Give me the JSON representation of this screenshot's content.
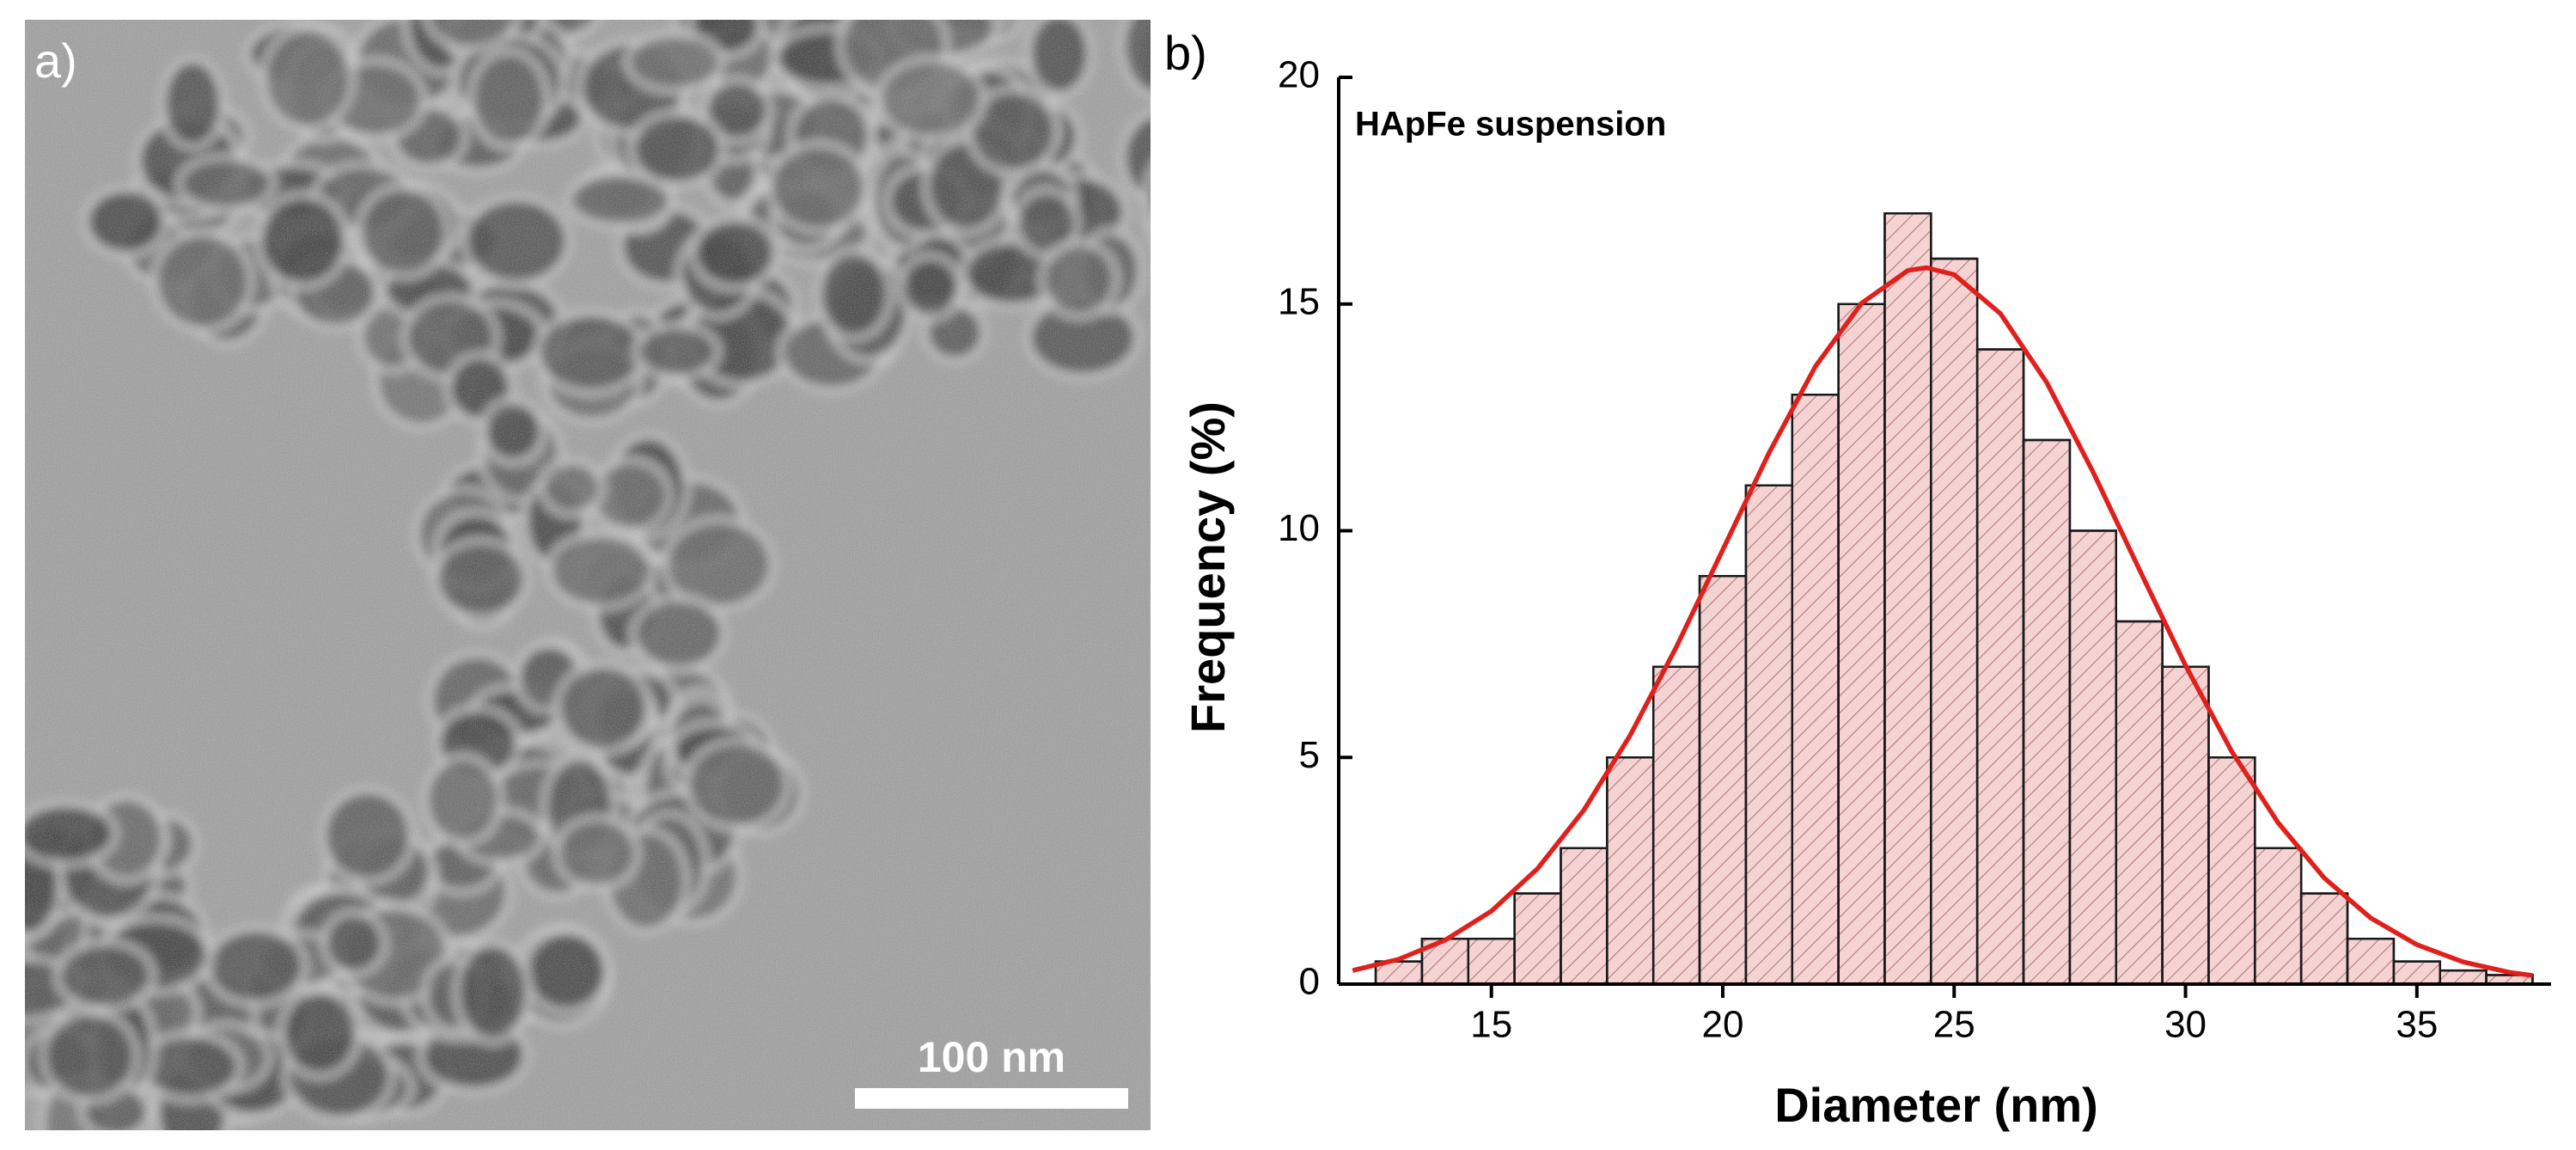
{
  "image_panel": {
    "label": "a)",
    "scale_bar": "100 nm"
  },
  "chart_data": {
    "type": "histogram",
    "panel_label": "b)",
    "annotation": "HApFe suspension",
    "xlabel": "Diameter (nm)",
    "ylabel": "Frequency (%)",
    "bins": [
      12.5,
      13.5,
      14.5,
      15.5,
      16.5,
      17.5,
      18.5,
      19.5,
      20.5,
      21.5,
      22.5,
      23.5,
      24.5,
      25.5,
      26.5,
      27.5,
      28.5,
      29.5,
      30.5,
      31.5,
      32.5,
      33.5,
      34.5,
      35.5,
      36.5,
      37.5
    ],
    "counts": [
      0.5,
      1,
      1,
      2,
      3,
      5,
      7,
      9,
      11,
      13,
      15,
      17,
      16,
      14,
      12,
      10,
      8,
      7,
      5,
      3,
      2,
      1,
      0.5,
      0.3,
      0.2
    ],
    "color": "#f6d3d3",
    "edge_color": "#1a1a1a",
    "xlim": [
      11.7,
      37.9
    ],
    "ylim": [
      0,
      20
    ],
    "xticks": [
      15,
      20,
      25,
      30,
      35
    ],
    "yticks": [
      0,
      5,
      10,
      15,
      20
    ],
    "fit": {
      "color": "#e0201c",
      "x": [
        12,
        13,
        14,
        15,
        16,
        17,
        18,
        19,
        20,
        21,
        22,
        23,
        24,
        24.4,
        25,
        26,
        27,
        28,
        29,
        30,
        31,
        32,
        33,
        34,
        35,
        36,
        37,
        37.5
      ],
      "values": [
        0.3,
        0.55,
        0.97,
        1.61,
        2.55,
        3.84,
        5.49,
        7.44,
        9.58,
        11.72,
        13.62,
        15.02,
        15.74,
        15.8,
        15.65,
        14.79,
        13.27,
        11.3,
        9.15,
        7.03,
        5.13,
        3.56,
        2.34,
        1.46,
        0.87,
        0.49,
        0.26,
        0.19
      ]
    }
  }
}
